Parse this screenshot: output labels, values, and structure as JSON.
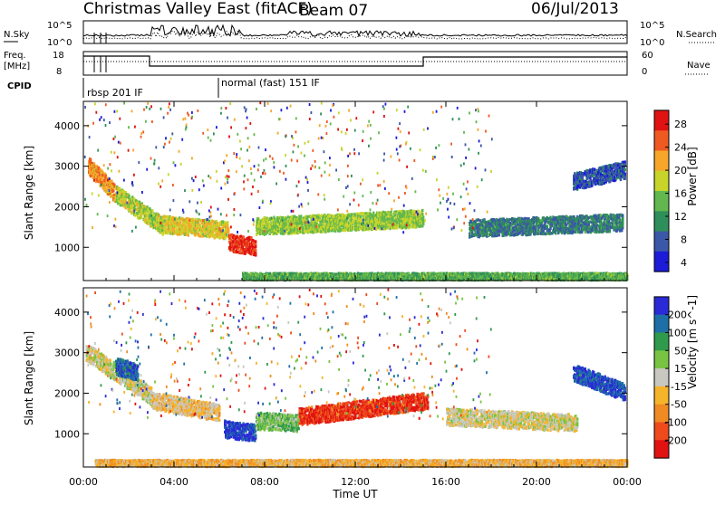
{
  "header": {
    "title": "Christmas Valley East (fitACF)",
    "beam": "Beam 07",
    "date": "06/Jul/2013"
  },
  "top_panels": {
    "nsky_label": "N.Sky",
    "nsky_ticks": [
      "10^5",
      "10^0"
    ],
    "nsearch_label": "N.Search",
    "nsearch_ticks": [
      "10^5",
      "10^0"
    ],
    "freq_label_1": "Freq.",
    "freq_label_2": "[MHz]",
    "freq_ticks": [
      "18",
      "8"
    ],
    "nave_label": "Nave",
    "nave_ticks": [
      "60",
      "0"
    ],
    "cpid_label": "CPID",
    "cpid_entries": [
      "rbsp 201 IF",
      "normal (fast) 151 IF"
    ]
  },
  "chart_data": [
    {
      "type": "heatmap",
      "panel": "power",
      "ylabel": "Slant Range [km]",
      "yticks": [
        "1000",
        "2000",
        "3000",
        "4000"
      ],
      "ylim": [
        180,
        4600
      ],
      "xlim": [
        "00:00",
        "24:00"
      ],
      "xticks": [
        "00:00",
        "04:00",
        "08:00",
        "12:00",
        "16:00",
        "20:00",
        "00:00"
      ],
      "colorbar_label": "Power [dB]",
      "colorbar_ticks": [
        "28",
        "24",
        "20",
        "16",
        "12",
        "8",
        "4"
      ],
      "colorbar_range": [
        0,
        30
      ],
      "colors": [
        "#1b1bd8",
        "#3b57a8",
        "#2f8f5a",
        "#62b84e",
        "#c8d42a",
        "#f6a72a",
        "#ee5a22",
        "#e01212"
      ],
      "echo_bands": [
        {
          "start_h": 0.2,
          "end_h": 1.4,
          "range_from_km": 3000,
          "range_to_km": 2300,
          "level": 22
        },
        {
          "start_h": 1.4,
          "end_h": 3.5,
          "range_from_km": 2300,
          "range_to_km": 1500,
          "level": 16
        },
        {
          "start_h": 3.5,
          "end_h": 6.4,
          "range_from_km": 1550,
          "range_to_km": 1400,
          "level": 18
        },
        {
          "start_h": 6.4,
          "end_h": 7.6,
          "range_from_km": 1100,
          "range_to_km": 1000,
          "level": 27
        },
        {
          "start_h": 7.6,
          "end_h": 15.0,
          "range_from_km": 1500,
          "range_to_km": 1700,
          "level": 15
        },
        {
          "start_h": 17.0,
          "end_h": 23.8,
          "range_from_km": 1450,
          "range_to_km": 1600,
          "level": 8
        },
        {
          "start_h": 21.6,
          "end_h": 23.9,
          "range_from_km": 2600,
          "range_to_km": 2900,
          "level": 5
        },
        {
          "start_h": 7.0,
          "end_h": 24.0,
          "range_from_km": 260,
          "range_to_km": 260,
          "level": 12
        }
      ]
    },
    {
      "type": "heatmap",
      "panel": "velocity",
      "ylabel": "Slant Range [km]",
      "yticks": [
        "1000",
        "2000",
        "3000",
        "4000"
      ],
      "ylim": [
        180,
        4600
      ],
      "xlabel": "Time UT",
      "xticks": [
        "00:00",
        "04:00",
        "08:00",
        "12:00",
        "16:00",
        "20:00",
        "00:00"
      ],
      "colorbar_label": "Velocity [m s^-1]",
      "colorbar_ticks": [
        "200",
        "100",
        "50",
        "15",
        "-15",
        "-50",
        "-100",
        "-200"
      ],
      "colorbar_range": [
        -250,
        250
      ],
      "colors": [
        "#2a2ad6",
        "#1e6fa8",
        "#2f9a4c",
        "#78c442",
        "#c8c8c0",
        "#f6b42a",
        "#f08a22",
        "#ee4a1c",
        "#e01212"
      ],
      "echo_bands": [
        {
          "start_h": 0.1,
          "end_h": 3.0,
          "range_from_km": 3000,
          "range_to_km": 1900,
          "level": 0
        },
        {
          "start_h": 1.4,
          "end_h": 2.4,
          "range_from_km": 2650,
          "range_to_km": 2500,
          "level": 180
        },
        {
          "start_h": 3.0,
          "end_h": 6.0,
          "range_from_km": 1800,
          "range_to_km": 1500,
          "level": -40
        },
        {
          "start_h": 6.2,
          "end_h": 7.6,
          "range_from_km": 1100,
          "range_to_km": 1000,
          "level": 210
        },
        {
          "start_h": 7.6,
          "end_h": 9.5,
          "range_from_km": 1300,
          "range_to_km": 1250,
          "level": 60
        },
        {
          "start_h": 9.5,
          "end_h": 15.2,
          "range_from_km": 1400,
          "range_to_km": 1800,
          "level": -190
        },
        {
          "start_h": 16.0,
          "end_h": 21.8,
          "range_from_km": 1400,
          "range_to_km": 1250,
          "level": -10
        },
        {
          "start_h": 21.6,
          "end_h": 23.9,
          "range_from_km": 2500,
          "range_to_km": 2000,
          "level": 200
        },
        {
          "start_h": 0.5,
          "end_h": 24.0,
          "range_from_km": 250,
          "range_to_km": 250,
          "level": -60
        }
      ]
    }
  ]
}
